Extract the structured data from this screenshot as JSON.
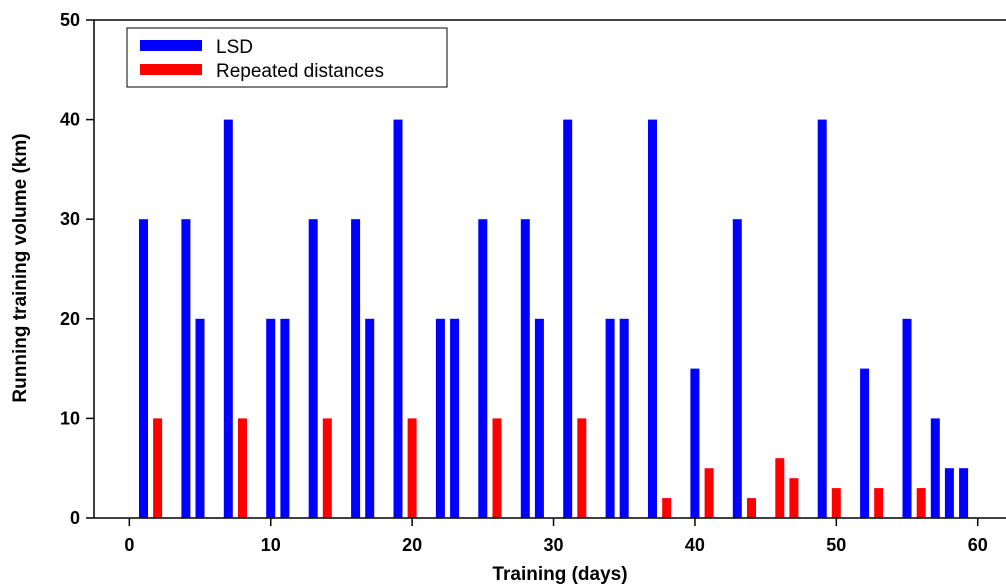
{
  "chart_data": {
    "type": "bar",
    "title": "",
    "xlabel": "Training (days)",
    "ylabel": "Running training volume (km)",
    "xlim": [
      -2.5,
      62
    ],
    "ylim": [
      0,
      50
    ],
    "xticks": [
      0,
      10,
      20,
      30,
      40,
      50,
      60
    ],
    "yticks": [
      0,
      10,
      20,
      30,
      40,
      50
    ],
    "grid": false,
    "legend_position": "top-left",
    "series": [
      {
        "name": "LSD",
        "color": "#0000ff",
        "x": [
          1,
          4,
          5,
          7,
          10,
          11,
          13,
          16,
          17,
          19,
          22,
          23,
          25,
          28,
          29,
          31,
          34,
          35,
          37,
          40,
          43,
          49,
          52,
          55,
          57,
          58,
          59
        ],
        "values": [
          30,
          30,
          20,
          40,
          20,
          20,
          30,
          30,
          20,
          40,
          20,
          20,
          30,
          30,
          20,
          40,
          20,
          20,
          40,
          15,
          30,
          40,
          15,
          20,
          10,
          5,
          5
        ]
      },
      {
        "name": "Repeated distances",
        "color": "#ff0000",
        "x": [
          2,
          8,
          14,
          20,
          26,
          32,
          38,
          41,
          44,
          46,
          47,
          50,
          53,
          56
        ],
        "values": [
          10,
          10,
          10,
          10,
          10,
          10,
          2,
          5,
          2,
          6,
          4,
          3,
          3,
          3
        ]
      }
    ]
  }
}
